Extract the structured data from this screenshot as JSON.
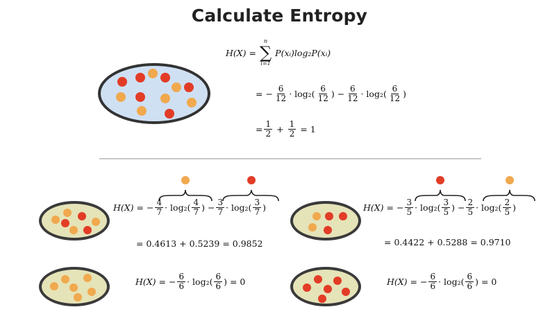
{
  "title": "Calculate Entropy",
  "colors": {
    "red_ball": "#e23c26",
    "orange_ball": "#f0a94e",
    "top_set_fill": "#cfe0f3",
    "bottom_set_fill": "#e5e3b8",
    "outline": "#333333"
  },
  "top": {
    "formula_lhs": "H(X) =",
    "sum_upper": "n",
    "sum_lower": "i=1",
    "sum_sign": "∑",
    "formula_rhs": "P(xᵢ)log₂P(xᵢ)",
    "line2": {
      "lead": "= −",
      "n1": "6",
      "d1": "12",
      "log": "· log₂(",
      "n2": "6",
      "d2": "12",
      "mid": ") −",
      "n3": "6",
      "d3": "12",
      "log2": "· log₂(",
      "n4": "6",
      "d4": "12",
      "close": ")"
    },
    "line3": {
      "lead": "=",
      "n1": "1",
      "d1": "2",
      "plus": "+",
      "n2": "1",
      "d2": "2",
      "result": "= 1"
    }
  },
  "left_split": {
    "lhs": "H(X) = −",
    "n1": "4",
    "d1": "7",
    "log": "· log₂(",
    "n2": "4",
    "d2": "7",
    "mid": ") −",
    "n3": "3",
    "d3": "7",
    "log2": "· log₂(",
    "n4": "3",
    "d4": "7",
    "close": ")",
    "result": "= 0.4613 + 0.5239 = 0.9852"
  },
  "right_split": {
    "lhs": "H(X) = −",
    "n1": "3",
    "d1": "5",
    "log": "· log₂(",
    "n2": "3",
    "d2": "5",
    "mid": ") −",
    "n3": "2",
    "d3": "5",
    "log2": "· log₂(",
    "n4": "2",
    "d4": "5",
    "close": ")",
    "result": "= 0.4422 + 0.5288 = 0.9710"
  },
  "left_pure": {
    "lhs": "H(X) = −",
    "n1": "6",
    "d1": "6",
    "log": "· log₂(",
    "n2": "6",
    "d2": "6",
    "close": ") = 0"
  },
  "right_pure": {
    "lhs": "H(X) = −",
    "n1": "6",
    "d1": "6",
    "log": "· log₂(",
    "n2": "6",
    "d2": "6",
    "close": ") = 0"
  }
}
